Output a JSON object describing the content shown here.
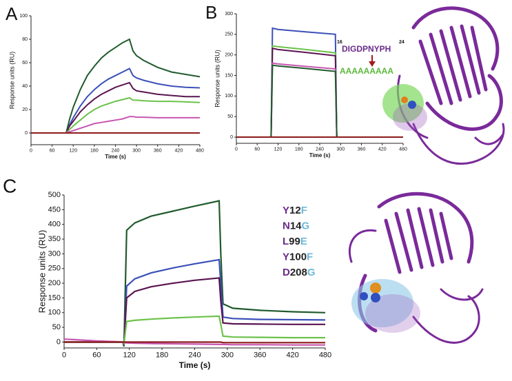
{
  "chart_data": [
    {
      "type": "line",
      "label": "A",
      "xlabel": "Time (s)",
      "ylabel": "Response units (RU)",
      "x": [
        0,
        100,
        110,
        120,
        140,
        160,
        180,
        200,
        220,
        240,
        260,
        280,
        290,
        300,
        320,
        360,
        400,
        440,
        480
      ],
      "xlim": [
        0,
        480
      ],
      "xticks": [
        0,
        60,
        120,
        180,
        240,
        300,
        360,
        420,
        480
      ],
      "ylim": [
        -10,
        100
      ],
      "yticks": [
        0,
        20,
        40,
        60,
        80,
        100
      ],
      "series": [
        {
          "color": "#1f5a2c",
          "values": [
            0,
            0,
            12,
            22,
            37,
            49,
            57,
            64,
            69,
            73,
            77,
            80,
            70,
            66,
            62,
            56,
            52,
            50,
            48
          ]
        },
        {
          "color": "#3b4fb8",
          "values": [
            0,
            0,
            7,
            13,
            23,
            31,
            37,
            42,
            46,
            49,
            52,
            55,
            49,
            47,
            45,
            42,
            40,
            39,
            38.5
          ]
        },
        {
          "color": "#5a1450",
          "values": [
            0,
            0,
            6,
            10,
            18,
            24,
            29,
            33,
            36,
            39,
            41,
            43,
            38,
            36,
            35,
            33,
            32,
            31,
            31
          ]
        },
        {
          "color": "#6cc24a",
          "values": [
            0,
            0,
            3,
            6,
            11,
            16,
            20,
            23,
            25,
            27,
            28.5,
            30,
            28,
            28,
            27.5,
            27,
            27,
            26.5,
            26
          ]
        },
        {
          "color": "#c855b0",
          "values": [
            0,
            0,
            1,
            2,
            4,
            6,
            8,
            9,
            10,
            11,
            12,
            14,
            14,
            13.5,
            13.5,
            13,
            13,
            13,
            13
          ]
        },
        {
          "color": "#8b1a1a",
          "values": [
            0,
            0,
            0,
            0,
            0,
            0,
            0,
            0,
            0,
            0,
            0,
            0,
            0,
            0,
            0,
            0,
            0,
            0,
            0
          ]
        }
      ]
    },
    {
      "type": "line",
      "label": "B",
      "xlabel": "Time (s)",
      "ylabel": "Response units (RU)",
      "x": [
        0,
        100,
        104,
        120,
        200,
        285,
        289,
        480
      ],
      "xlim": [
        0,
        480
      ],
      "xticks": [
        0,
        60,
        120,
        180,
        240,
        300,
        360,
        420,
        480
      ],
      "ylim": [
        -15,
        300
      ],
      "yticks": [
        0,
        50,
        100,
        150,
        200,
        250,
        300
      ],
      "annotation": {
        "start": "16",
        "sequence": "DIGDPNYPH",
        "end": "24",
        "replacement": "AAAAAAAAA"
      },
      "series": [
        {
          "color": "#3b4fb8",
          "values": [
            0,
            0,
            265,
            262,
            256,
            250,
            0,
            0
          ]
        },
        {
          "color": "#6cc24a",
          "values": [
            0,
            0,
            222,
            220,
            213,
            205,
            0,
            0
          ]
        },
        {
          "color": "#5a1450",
          "values": [
            0,
            0,
            216,
            213,
            206,
            198,
            0,
            0
          ]
        },
        {
          "color": "#c855b0",
          "values": [
            0,
            0,
            180,
            178,
            172,
            166,
            0,
            0
          ]
        },
        {
          "color": "#1f5a2c",
          "values": [
            0,
            0,
            175,
            173,
            167,
            160,
            0,
            0
          ]
        },
        {
          "color": "#8b1a1a",
          "values": [
            0,
            0,
            0,
            0,
            0,
            0,
            0,
            0
          ]
        }
      ]
    },
    {
      "type": "line",
      "label": "C",
      "xlabel": "Time (s)",
      "ylabel": "Response units (RU)",
      "x": [
        0,
        20,
        60,
        100,
        108,
        110,
        115,
        130,
        160,
        200,
        240,
        285,
        288,
        292,
        310,
        360,
        420,
        480
      ],
      "xlim": [
        0,
        480
      ],
      "xticks": [
        0,
        60,
        120,
        180,
        240,
        300,
        360,
        420,
        480
      ],
      "ylim": [
        -20,
        500
      ],
      "yticks": [
        0,
        50,
        100,
        150,
        200,
        250,
        300,
        350,
        400,
        450,
        500
      ],
      "mutations": [
        {
          "from": "Y",
          "position": "12",
          "to": "F"
        },
        {
          "from": "N",
          "position": "14",
          "to": "G"
        },
        {
          "from": "L",
          "position": "99",
          "to": "E"
        },
        {
          "from": "Y",
          "position": "100",
          "to": "F"
        },
        {
          "from": "D",
          "position": "208",
          "to": "G"
        }
      ],
      "series": [
        {
          "color": "#1f5a2c",
          "values": [
            0,
            0,
            0,
            0,
            0,
            -15,
            380,
            405,
            428,
            445,
            462,
            480,
            300,
            130,
            115,
            108,
            103,
            100
          ]
        },
        {
          "color": "#3b4fb8",
          "values": [
            0,
            0,
            0,
            0,
            0,
            -10,
            190,
            215,
            235,
            252,
            266,
            280,
            200,
            85,
            80,
            77,
            76,
            75
          ]
        },
        {
          "color": "#5a1450",
          "values": [
            0,
            0,
            0,
            0,
            0,
            -8,
            150,
            172,
            188,
            200,
            210,
            218,
            140,
            65,
            62,
            61,
            60,
            60
          ]
        },
        {
          "color": "#6cc24a",
          "values": [
            0,
            0,
            0,
            0,
            0,
            -5,
            70,
            74,
            78,
            82,
            85,
            88,
            60,
            20,
            17,
            16,
            15,
            15
          ]
        },
        {
          "color": "#c855b0",
          "values": [
            10,
            8,
            4,
            1,
            0,
            -2,
            -3,
            -4,
            -5,
            -6,
            -7,
            -8,
            -8,
            -8,
            -9,
            -9,
            -10,
            -10
          ]
        },
        {
          "color": "#8b1a1a",
          "values": [
            0,
            0,
            0,
            0,
            0,
            0,
            0,
            0,
            0,
            0,
            0,
            0,
            0,
            -2,
            -2,
            -2,
            -2,
            -2
          ]
        }
      ]
    }
  ]
}
